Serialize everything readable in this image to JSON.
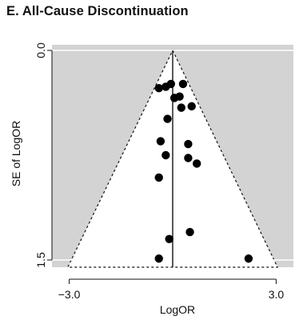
{
  "title": "E. All-Cause Discontinuation",
  "chart_data": {
    "type": "scatter",
    "subtype": "funnel",
    "xlabel": "LogOR",
    "ylabel": "SE of LogOR",
    "xlim": [
      -3.5,
      3.5
    ],
    "ylim": [
      0.0,
      1.5
    ],
    "y_reversed": true,
    "x_ticks": [
      -3.0,
      3.0
    ],
    "x_tick_labels": [
      "−3.0",
      "3.0"
    ],
    "y_ticks": [
      0.0,
      1.5
    ],
    "y_tick_labels": [
      "0.0",
      "1.5"
    ],
    "pooled_estimate": 0.0,
    "funnel_multiplier": 1.96,
    "grid": false,
    "legend": "none",
    "colors": {
      "background": "#d3d3d3",
      "funnel_fill": "#ffffff",
      "points": "#000000",
      "lines": "#111111"
    },
    "points": [
      {
        "x": -0.4,
        "y": 0.27
      },
      {
        "x": -0.2,
        "y": 0.26
      },
      {
        "x": -0.05,
        "y": 0.24
      },
      {
        "x": 0.3,
        "y": 0.24
      },
      {
        "x": 0.2,
        "y": 0.33
      },
      {
        "x": 0.05,
        "y": 0.34
      },
      {
        "x": 0.25,
        "y": 0.41
      },
      {
        "x": 0.55,
        "y": 0.4
      },
      {
        "x": -0.15,
        "y": 0.49
      },
      {
        "x": -0.35,
        "y": 0.65
      },
      {
        "x": 0.45,
        "y": 0.67
      },
      {
        "x": -0.2,
        "y": 0.75
      },
      {
        "x": 0.45,
        "y": 0.77
      },
      {
        "x": 0.7,
        "y": 0.81
      },
      {
        "x": -0.4,
        "y": 0.91
      },
      {
        "x": 0.5,
        "y": 1.3
      },
      {
        "x": -0.1,
        "y": 1.35
      },
      {
        "x": -0.4,
        "y": 1.49
      },
      {
        "x": 2.2,
        "y": 1.49
      }
    ]
  }
}
